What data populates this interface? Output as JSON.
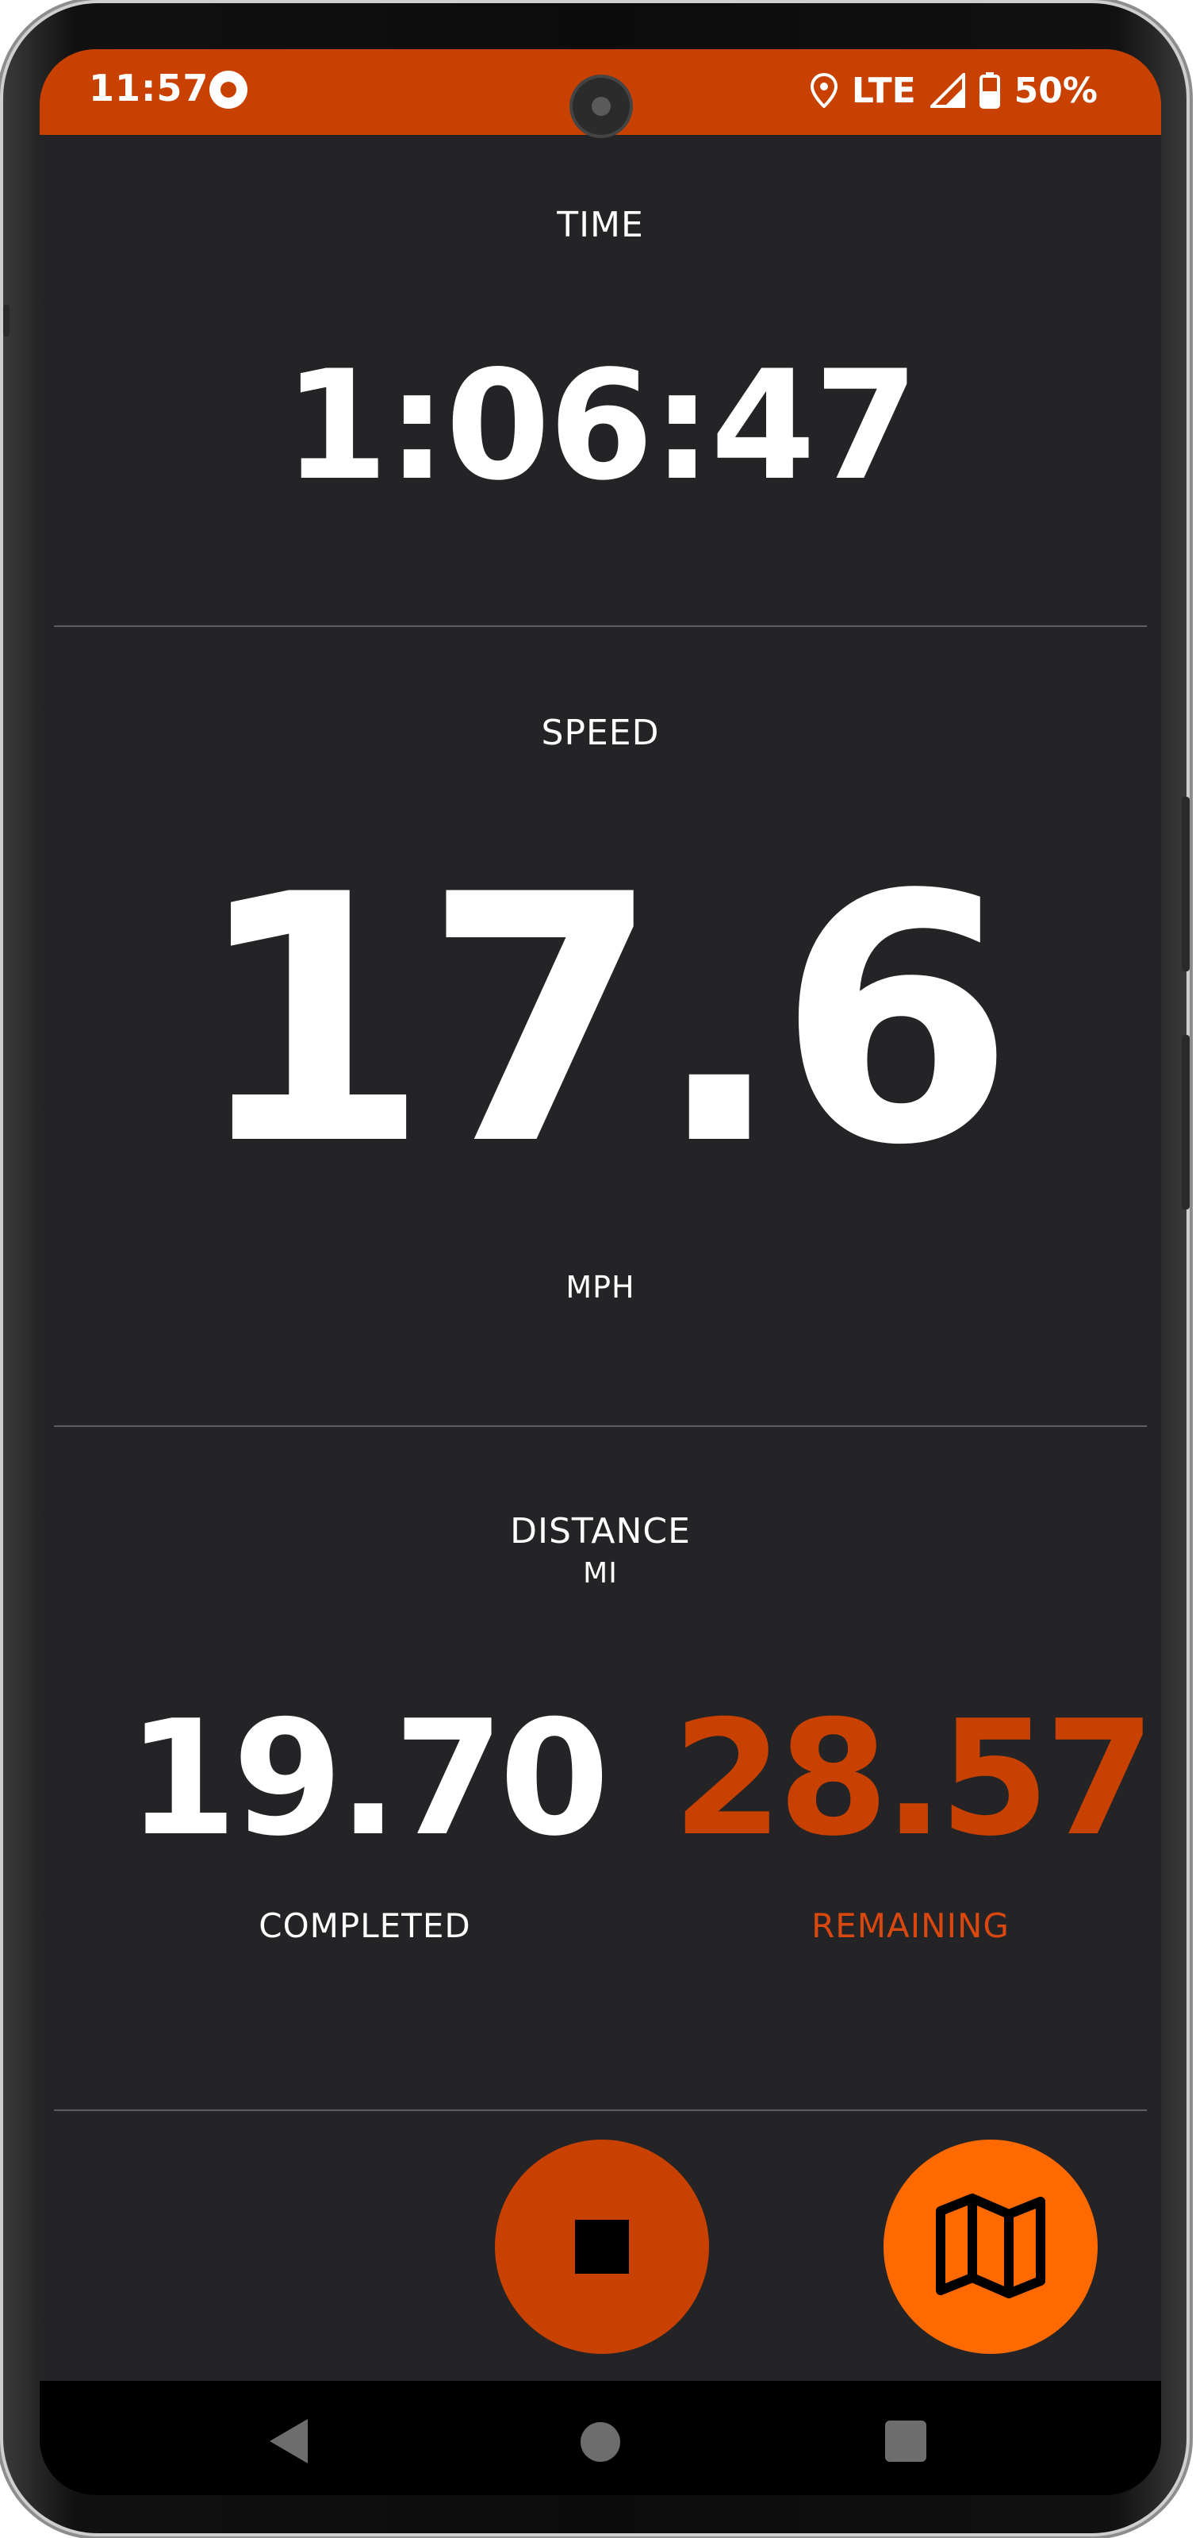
{
  "status_bar": {
    "time": "11:57",
    "network": "LTE",
    "battery": "50%",
    "icons": [
      "record-icon",
      "location-icon",
      "signal-icon",
      "battery-icon"
    ]
  },
  "time_section": {
    "label": "TIME",
    "value": "1:06:47"
  },
  "speed_section": {
    "label": "SPEED",
    "value": "17.6",
    "unit": "MPH"
  },
  "distance_section": {
    "label": "DISTANCE",
    "unit": "MI",
    "completed": {
      "value": "19.70",
      "label": "COMPLETED"
    },
    "remaining": {
      "value": "28.57",
      "label": "REMAINING"
    }
  },
  "buttons": {
    "stop": {
      "icon": "stop-icon"
    },
    "map": {
      "icon": "map-icon"
    }
  },
  "nav_bar": {
    "icons": [
      "back-icon",
      "home-icon",
      "recent-apps-icon"
    ]
  },
  "colors": {
    "accent": "#c94100",
    "accent_bright": "#ff6a00",
    "background": "#242326",
    "remaining_text": "#d9480f",
    "text": "#ffffff"
  }
}
